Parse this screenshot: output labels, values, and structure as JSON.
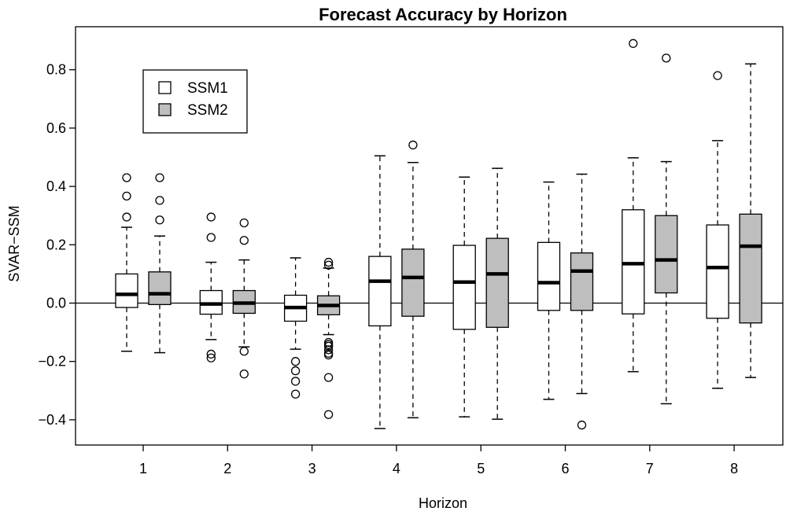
{
  "chart_data": {
    "type": "boxplot",
    "title": "Forecast Accuracy by Horizon",
    "xlabel": "Horizon",
    "ylabel": "SVAR−SSM",
    "categories": [
      "1",
      "2",
      "3",
      "4",
      "5",
      "6",
      "7",
      "8"
    ],
    "ylim": [
      -0.48,
      0.95
    ],
    "yticks": [
      -0.4,
      -0.2,
      0.0,
      0.2,
      0.4,
      0.6,
      0.8
    ],
    "ytick_labels": [
      "−0.4",
      "−0.2",
      "0.0",
      "0.2",
      "0.4",
      "0.6",
      "0.8"
    ],
    "reference_line": 0.0,
    "legend": {
      "position": "top-left",
      "entries": [
        {
          "name": "SSM1",
          "color": "#ffffff"
        },
        {
          "name": "SSM2",
          "color": "#bebebe"
        }
      ]
    },
    "series": [
      {
        "name": "SSM1",
        "color": "#ffffff",
        "boxes": [
          {
            "whisker_low": -0.165,
            "q1": -0.015,
            "median": 0.03,
            "q3": 0.1,
            "whisker_high": 0.26,
            "outliers": [
              0.295,
              0.367,
              0.43
            ]
          },
          {
            "whisker_low": -0.125,
            "q1": -0.038,
            "median": -0.003,
            "q3": 0.043,
            "whisker_high": 0.14,
            "outliers": [
              -0.175,
              -0.188,
              0.225,
              0.295
            ]
          },
          {
            "whisker_low": -0.158,
            "q1": -0.062,
            "median": -0.015,
            "q3": 0.027,
            "whisker_high": 0.155,
            "outliers": [
              -0.2,
              -0.232,
              -0.268,
              -0.312
            ]
          },
          {
            "whisker_low": -0.43,
            "q1": -0.078,
            "median": 0.075,
            "q3": 0.16,
            "whisker_high": 0.505,
            "outliers": []
          },
          {
            "whisker_low": -0.39,
            "q1": -0.09,
            "median": 0.072,
            "q3": 0.198,
            "whisker_high": 0.432,
            "outliers": []
          },
          {
            "whisker_low": -0.33,
            "q1": -0.025,
            "median": 0.07,
            "q3": 0.208,
            "whisker_high": 0.415,
            "outliers": []
          },
          {
            "whisker_low": -0.235,
            "q1": -0.037,
            "median": 0.135,
            "q3": 0.32,
            "whisker_high": 0.498,
            "outliers": [
              0.89
            ]
          },
          {
            "whisker_low": -0.292,
            "q1": -0.052,
            "median": 0.122,
            "q3": 0.268,
            "whisker_high": 0.557,
            "outliers": [
              0.78
            ]
          }
        ]
      },
      {
        "name": "SSM2",
        "color": "#bebebe",
        "boxes": [
          {
            "whisker_low": -0.17,
            "q1": -0.005,
            "median": 0.032,
            "q3": 0.107,
            "whisker_high": 0.23,
            "outliers": [
              0.285,
              0.352,
              0.43
            ]
          },
          {
            "whisker_low": -0.15,
            "q1": -0.035,
            "median": 0.0,
            "q3": 0.043,
            "whisker_high": 0.148,
            "outliers": [
              -0.165,
              -0.243,
              0.215,
              0.275
            ]
          },
          {
            "whisker_low": -0.108,
            "q1": -0.04,
            "median": -0.008,
            "q3": 0.025,
            "whisker_high": 0.12,
            "outliers": [
              -0.135,
              -0.142,
              -0.148,
              -0.16,
              -0.172,
              -0.178,
              -0.255,
              -0.382,
              0.13,
              0.14
            ]
          },
          {
            "whisker_low": -0.393,
            "q1": -0.045,
            "median": 0.088,
            "q3": 0.185,
            "whisker_high": 0.482,
            "outliers": [
              0.542
            ]
          },
          {
            "whisker_low": -0.398,
            "q1": -0.083,
            "median": 0.1,
            "q3": 0.222,
            "whisker_high": 0.462,
            "outliers": []
          },
          {
            "whisker_low": -0.31,
            "q1": -0.025,
            "median": 0.11,
            "q3": 0.172,
            "whisker_high": 0.442,
            "outliers": [
              -0.418
            ]
          },
          {
            "whisker_low": -0.345,
            "q1": 0.035,
            "median": 0.148,
            "q3": 0.3,
            "whisker_high": 0.485,
            "outliers": [
              0.84
            ]
          },
          {
            "whisker_low": -0.255,
            "q1": -0.068,
            "median": 0.195,
            "q3": 0.305,
            "whisker_high": 0.82,
            "outliers": []
          }
        ]
      }
    ]
  }
}
